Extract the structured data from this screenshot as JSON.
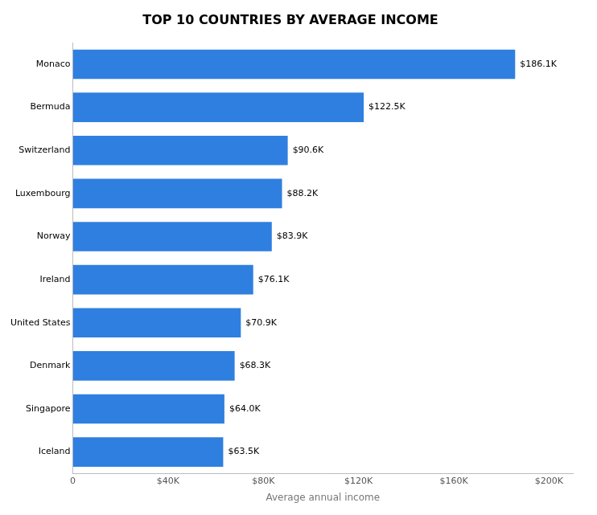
{
  "chart_data": {
    "type": "bar",
    "orientation": "horizontal",
    "title": "TOP 10 COUNTRIES BY AVERAGE INCOME",
    "xlabel": "Average annual income",
    "categories": [
      "Iceland",
      "Singapore",
      "Denmark",
      "United States",
      "Ireland",
      "Norway",
      "Luxembourg",
      "Switzerland",
      "Bermuda",
      "Monaco"
    ],
    "values": [
      63500,
      64000,
      68300,
      70900,
      76100,
      83900,
      88200,
      90600,
      122500,
      186100
    ],
    "value_labels": [
      "$63.5K",
      "$64.0K",
      "$68.3K",
      "$70.9K",
      "$76.1K",
      "$83.9K",
      "$88.2K",
      "$90.6K",
      "$122.5K",
      "$186.1K"
    ],
    "data_labels": true,
    "color": "#2f7fe0",
    "xlim": [
      0,
      210000
    ],
    "xticks": [
      0,
      {
        "value": 40000,
        "label": "$40K"
      },
      {
        "value": 80000,
        "label": "$80K"
      },
      {
        "value": 120000,
        "label": "$120K"
      },
      {
        "value": 160000,
        "label": "$160K"
      },
      {
        "value": 200000,
        "label": "$200K"
      }
    ],
    "grid": false
  }
}
